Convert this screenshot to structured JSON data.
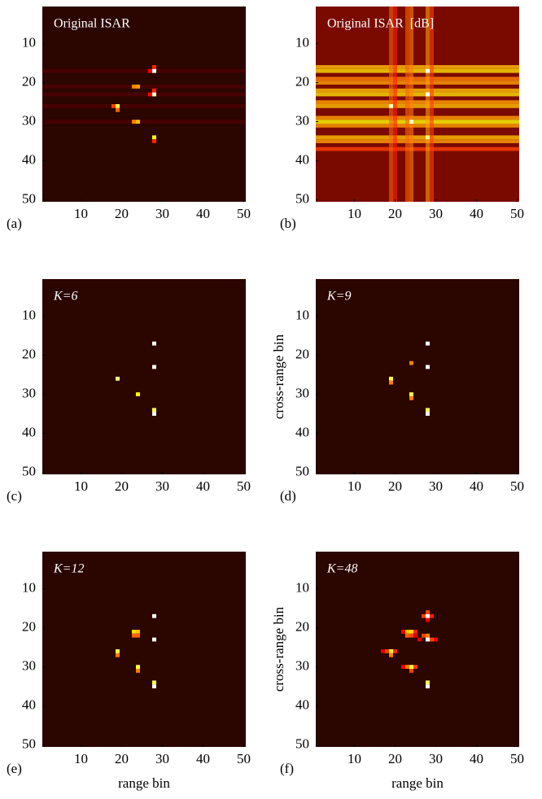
{
  "chart_data": [
    {
      "type": "heatmap",
      "title": "Original ISAR",
      "title_italic": false,
      "panel_label": "(a)",
      "xlim": [
        0.5,
        50.5
      ],
      "ylim": [
        50.5,
        0.5
      ],
      "xticks": [
        10,
        20,
        30,
        40,
        50
      ],
      "yticks": [
        10,
        20,
        30,
        40,
        50
      ],
      "colormap": "hot",
      "color_background": "#2b0500",
      "h_bands": {
        "y": [
          17,
          21,
          23,
          26,
          30
        ],
        "values": [
          0.12,
          0.12,
          0.12,
          0.12,
          0.12
        ]
      },
      "points": {
        "x": [
          28,
          27,
          28,
          28,
          27,
          28,
          23,
          24,
          19,
          18,
          19,
          23,
          24,
          28,
          28
        ],
        "y": [
          17,
          17,
          16,
          23,
          23,
          22,
          21,
          21,
          26,
          26,
          27,
          30,
          30,
          34,
          35
        ],
        "values": [
          1,
          0.4,
          0.45,
          0.95,
          0.4,
          0.45,
          0.6,
          0.65,
          0.85,
          0.5,
          0.55,
          0.6,
          0.7,
          0.8,
          0.45
        ]
      }
    },
    {
      "type": "heatmap",
      "title": "Original ISAR  [dB]",
      "title_italic": false,
      "panel_label": "(b)",
      "xlim": [
        0.5,
        50.5
      ],
      "ylim": [
        50.5,
        0.5
      ],
      "xticks": [
        10,
        20,
        30,
        40,
        50
      ],
      "yticks": [
        10,
        20,
        30,
        40,
        50
      ],
      "colormap": "hot",
      "color_background": "#7a0a00",
      "h_bands": {
        "y": [
          16,
          17,
          19,
          20,
          22,
          23,
          25,
          26,
          29,
          30,
          31,
          34,
          35,
          37
        ],
        "values": [
          0.7,
          0.75,
          0.6,
          0.65,
          0.7,
          0.75,
          0.65,
          0.7,
          0.65,
          0.8,
          0.65,
          0.7,
          0.65,
          0.5
        ]
      },
      "v_bands": {
        "x": [
          19,
          20,
          23,
          24,
          28,
          29
        ],
        "values": [
          0.55,
          0.45,
          0.55,
          0.6,
          0.65,
          0.5
        ]
      },
      "points": {
        "x": [
          28,
          28,
          19,
          24,
          28
        ],
        "y": [
          17,
          23,
          26,
          30,
          34
        ],
        "values": [
          1,
          1,
          0.95,
          0.95,
          0.9
        ]
      }
    },
    {
      "type": "heatmap",
      "title": "K=6",
      "title_italic": true,
      "panel_label": "(c)",
      "xlim": [
        0.5,
        50.5
      ],
      "ylim": [
        50.5,
        0.5
      ],
      "xticks": [
        10,
        20,
        30,
        40,
        50
      ],
      "yticks": [
        10,
        20,
        30,
        40,
        50
      ],
      "colormap": "hot",
      "color_background": "#2b0500",
      "points": {
        "x": [
          28,
          28,
          19,
          24,
          28,
          28
        ],
        "y": [
          17,
          23,
          26,
          30,
          34,
          35
        ],
        "values": [
          1,
          1,
          0.9,
          0.8,
          0.85,
          1
        ]
      }
    },
    {
      "type": "heatmap",
      "title": "K=9",
      "title_italic": true,
      "panel_label": "(d)",
      "ylabel": "cross-range bin",
      "xlim": [
        0.5,
        50.5
      ],
      "ylim": [
        50.5,
        0.5
      ],
      "xticks": [
        10,
        20,
        30,
        40,
        50
      ],
      "yticks": [
        10,
        20,
        30,
        40,
        50
      ],
      "colormap": "hot",
      "color_background": "#2b0500",
      "points": {
        "x": [
          28,
          28,
          24,
          19,
          19,
          24,
          24,
          28,
          28
        ],
        "y": [
          17,
          23,
          22,
          26,
          27,
          30,
          31,
          34,
          35
        ],
        "values": [
          1,
          1,
          0.6,
          0.85,
          0.6,
          0.85,
          0.6,
          0.85,
          1
        ]
      }
    },
    {
      "type": "heatmap",
      "title": "K=12",
      "title_italic": true,
      "panel_label": "(e)",
      "xlabel": "range bin",
      "xlim": [
        0.5,
        50.5
      ],
      "ylim": [
        50.5,
        0.5
      ],
      "xticks": [
        10,
        20,
        30,
        40,
        50
      ],
      "yticks": [
        10,
        20,
        30,
        40,
        50
      ],
      "colormap": "hot",
      "color_background": "#2b0500",
      "points": {
        "x": [
          28,
          28,
          23,
          24,
          23,
          24,
          19,
          19,
          24,
          24,
          28,
          28
        ],
        "y": [
          17,
          23,
          21,
          21,
          22,
          22,
          26,
          27,
          30,
          31,
          34,
          35
        ],
        "values": [
          1,
          1,
          0.75,
          0.7,
          0.55,
          0.55,
          0.85,
          0.6,
          0.85,
          0.6,
          0.85,
          1
        ]
      }
    },
    {
      "type": "heatmap",
      "title": "K=48",
      "title_italic": true,
      "panel_label": "(f)",
      "xlabel": "range bin",
      "ylabel": "cross-range bin",
      "xlim": [
        0.5,
        50.5
      ],
      "ylim": [
        50.5,
        0.5
      ],
      "xticks": [
        10,
        20,
        30,
        40,
        50
      ],
      "yticks": [
        10,
        20,
        30,
        40,
        50
      ],
      "colormap": "hot",
      "color_background": "#2b0500",
      "points": {
        "x": [
          28,
          27,
          28,
          29,
          28,
          27,
          28,
          28,
          29,
          30,
          26,
          22,
          23,
          24,
          25,
          23,
          24,
          25,
          18,
          19,
          20,
          19,
          17,
          22,
          23,
          24,
          25,
          24,
          28,
          28
        ],
        "y": [
          16,
          17,
          17,
          17,
          18,
          22,
          22,
          23,
          23,
          23,
          23,
          21,
          21,
          21,
          21,
          22,
          22,
          22,
          26,
          26,
          26,
          27,
          26,
          30,
          30,
          30,
          30,
          31,
          34,
          35
        ],
        "values": [
          0.5,
          0.5,
          1,
          0.45,
          0.4,
          0.5,
          0.6,
          1,
          0.5,
          0.4,
          0.35,
          0.4,
          0.7,
          0.75,
          0.45,
          0.55,
          0.5,
          0.35,
          0.5,
          0.85,
          0.45,
          0.6,
          0.35,
          0.4,
          0.6,
          0.85,
          0.5,
          0.5,
          0.85,
          1
        ]
      }
    }
  ]
}
